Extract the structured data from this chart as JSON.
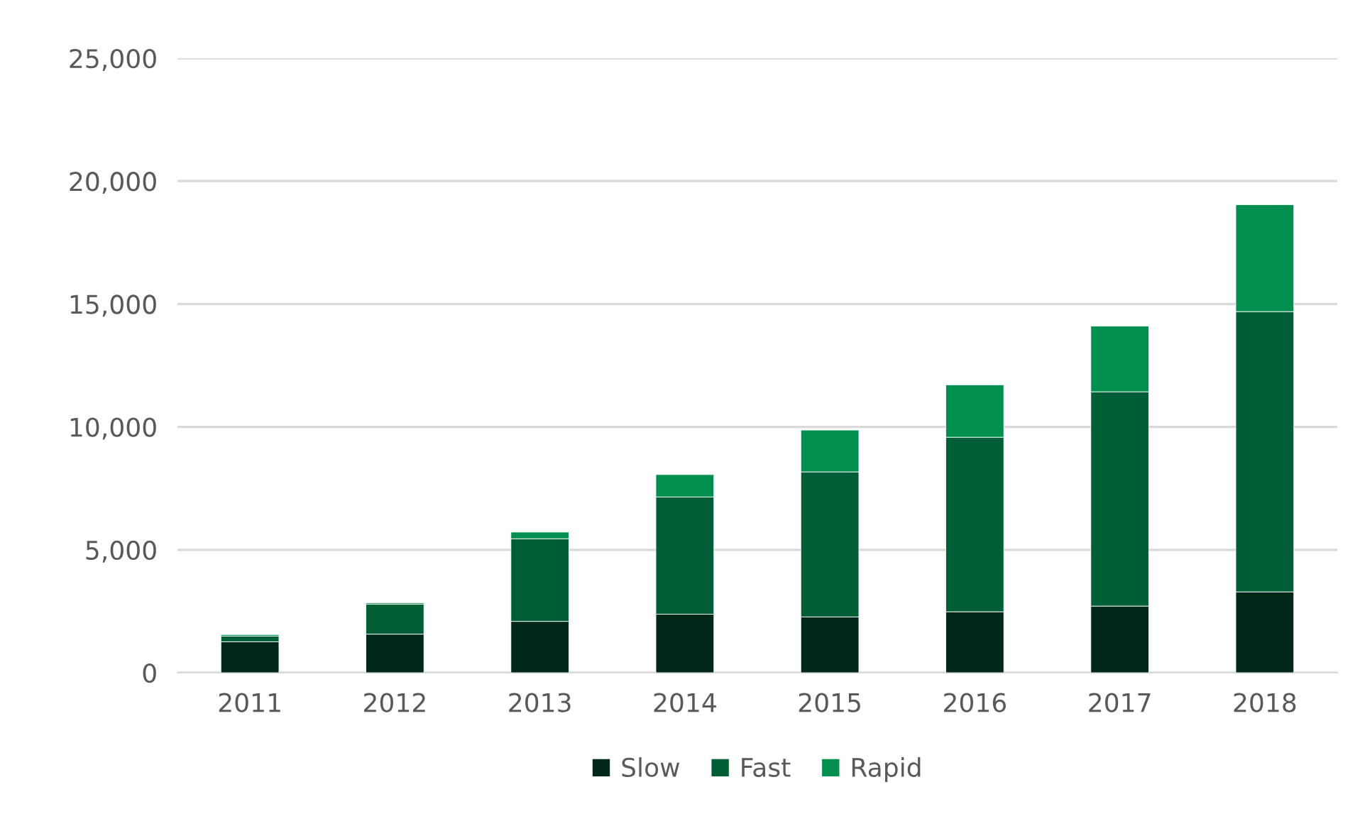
{
  "chart_data": {
    "type": "bar",
    "stacked": true,
    "categories": [
      "2011",
      "2012",
      "2013",
      "2014",
      "2015",
      "2016",
      "2017",
      "2018"
    ],
    "series": [
      {
        "name": "Slow",
        "color": "#00281a",
        "values": [
          1260,
          1570,
          2090,
          2380,
          2270,
          2480,
          2710,
          3290
        ]
      },
      {
        "name": "Fast",
        "color": "#005e36",
        "values": [
          230,
          1220,
          3360,
          4770,
          5900,
          7100,
          8720,
          11400
        ]
      },
      {
        "name": "Rapid",
        "color": "#008f4f",
        "values": [
          60,
          50,
          270,
          910,
          1700,
          2130,
          2670,
          4350
        ]
      }
    ],
    "ylim": [
      0,
      25000
    ],
    "yticks": [
      {
        "value": 0,
        "label": "0"
      },
      {
        "value": 5000,
        "label": "5,000"
      },
      {
        "value": 10000,
        "label": "10,000"
      },
      {
        "value": 15000,
        "label": "15,000"
      },
      {
        "value": 20000,
        "label": "20,000"
      },
      {
        "value": 25000,
        "label": "25,000"
      }
    ],
    "grid": "y",
    "legend": "bottom"
  }
}
